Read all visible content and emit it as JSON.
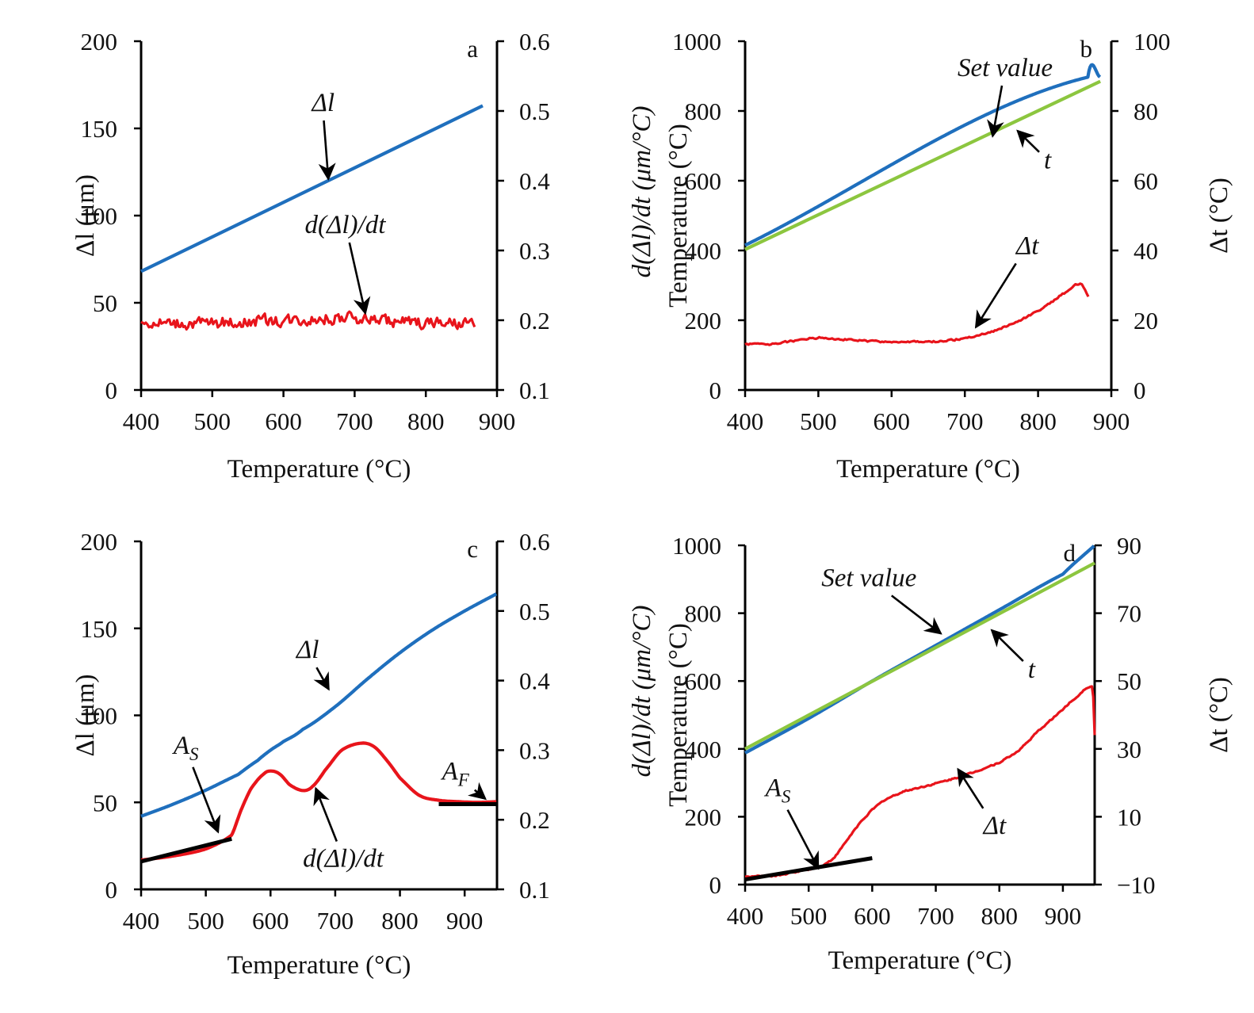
{
  "chart_data": [
    {
      "id": "a",
      "type": "line",
      "panel_label": "a",
      "xlabel": "Temperature (°C)",
      "ylabel": "Δl (μm)",
      "y2label": "",
      "xlim": [
        400,
        900
      ],
      "ylim": [
        0,
        200
      ],
      "y2lim": [
        0.1,
        0.6
      ],
      "xticks": [
        400,
        500,
        600,
        700,
        800,
        900
      ],
      "yticks": [
        0,
        50,
        100,
        150,
        200
      ],
      "y2ticks": [
        "0.1",
        "0.2",
        "0.3",
        "0.4",
        "0.5",
        "0.6"
      ],
      "series": [
        {
          "name": "Δl",
          "axis": "left",
          "color": "#1f6fbd",
          "x": [
            400,
            880
          ],
          "y": [
            68,
            163
          ]
        },
        {
          "name": "d(Δl)/dt",
          "axis": "right",
          "color": "#e8141b",
          "noisy": true,
          "noise_amp": 0.012,
          "x": [
            400,
            500,
            600,
            700,
            800,
            870
          ],
          "y": [
            0.196,
            0.196,
            0.2,
            0.202,
            0.196,
            0.192
          ]
        }
      ],
      "annotations": [
        {
          "text": "Δl",
          "x": 640,
          "y": 160,
          "axis": "left",
          "arrow_to": [
            663,
            121
          ]
        },
        {
          "text": "d(Δl)/dt",
          "x": 630,
          "y": 90,
          "axis": "left",
          "arrow_to": [
            715,
            44
          ]
        }
      ]
    },
    {
      "id": "b",
      "type": "line",
      "panel_label": "b",
      "xlabel": "Temperature (°C)",
      "ylabel": "Temperature  (°C)",
      "ylabel2": "d(Δl)/dt (μm/°C)",
      "y2label": "Δt (°C)",
      "xlim": [
        400,
        900
      ],
      "ylim": [
        0,
        1000
      ],
      "y2lim": [
        0,
        100
      ],
      "xticks": [
        400,
        500,
        600,
        700,
        800,
        900
      ],
      "yticks": [
        0,
        200,
        400,
        600,
        800,
        1000
      ],
      "y2ticks": [
        "0",
        "20",
        "40",
        "60",
        "80",
        "100"
      ],
      "series": [
        {
          "name": "Set value",
          "axis": "left",
          "color": "#1f6fbd",
          "x": [
            400,
            868,
            885
          ],
          "y": [
            415,
            897,
            897
          ]
        },
        {
          "name": "t",
          "axis": "left",
          "color": "#8cc63f",
          "x": [
            400,
            885
          ],
          "y": [
            403,
            885
          ]
        },
        {
          "name": "Δt",
          "axis": "right",
          "color": "#e8141b",
          "noisy": true,
          "noise_amp": 0.35,
          "x": [
            400,
            430,
            460,
            500,
            530,
            560,
            600,
            650,
            680,
            700,
            720,
            750,
            780,
            810,
            840,
            858,
            870
          ],
          "y": [
            13.2,
            13.1,
            13.9,
            15.0,
            14.6,
            14.1,
            13.8,
            13.8,
            14.2,
            14.9,
            15.8,
            17.7,
            20.5,
            24.0,
            28.3,
            30.3,
            26.2
          ]
        }
      ],
      "annotations": [
        {
          "text": "Set value",
          "x": 690,
          "y": 900,
          "axis": "left",
          "arrow_to": [
            738,
            728
          ]
        },
        {
          "text": "t",
          "x": 808,
          "y": 635,
          "axis": "left",
          "arrow_to": [
            772,
            743
          ]
        },
        {
          "text": "Δt",
          "x": 770,
          "y": 390,
          "axis": "left",
          "arrow_to": [
            715,
            180
          ]
        }
      ]
    },
    {
      "id": "c",
      "type": "line",
      "panel_label": "c",
      "xlabel": "Temperature (°C)",
      "ylabel": "Δl (μm)",
      "y2label": "",
      "xlim": [
        400,
        950
      ],
      "ylim": [
        0,
        200
      ],
      "y2lim": [
        0.1,
        0.6
      ],
      "xticks": [
        400,
        500,
        600,
        700,
        800,
        900
      ],
      "yticks": [
        0,
        50,
        100,
        150,
        200
      ],
      "y2ticks": [
        "0.1",
        "0.2",
        "0.3",
        "0.4",
        "0.5",
        "0.6"
      ],
      "series": [
        {
          "name": "Δl",
          "axis": "left",
          "color": "#1f6fbd",
          "x": [
            400,
            450,
            500,
            550,
            580,
            600,
            620,
            650,
            700,
            750,
            800,
            850,
            900,
            950
          ],
          "y": [
            42,
            49,
            57,
            66,
            74,
            80,
            85,
            92,
            105,
            121,
            136,
            149,
            160,
            170
          ]
        },
        {
          "name": "d(Δl)/dt",
          "axis": "right",
          "color": "#e8141b",
          "x": [
            400,
            450,
            500,
            540,
            555,
            570,
            590,
            602,
            615,
            630,
            650,
            665,
            685,
            710,
            740,
            760,
            780,
            800,
            830,
            860,
            890,
            920,
            950
          ],
          "y": [
            0.142,
            0.148,
            0.158,
            0.178,
            0.215,
            0.245,
            0.266,
            0.27,
            0.265,
            0.25,
            0.242,
            0.248,
            0.272,
            0.3,
            0.31,
            0.305,
            0.285,
            0.26,
            0.235,
            0.228,
            0.226,
            0.225,
            0.226
          ]
        }
      ],
      "tangents": [
        {
          "x": [
            400,
            540
          ],
          "y": [
            16,
            29
          ],
          "axis": "left"
        },
        {
          "x": [
            860,
            950
          ],
          "y": [
            49,
            49
          ],
          "axis": "left"
        }
      ],
      "annotations": [
        {
          "text": "AS",
          "main": "A",
          "sub": "S",
          "x": 450,
          "y": 78,
          "axis": "left",
          "arrow_to": [
            519,
            33
          ]
        },
        {
          "text": "AF",
          "main": "A",
          "sub": "F",
          "x": 865,
          "y": 63,
          "axis": "left",
          "arrow_to": [
            932,
            52
          ]
        },
        {
          "text": "Δl",
          "x": 640,
          "y": 133,
          "axis": "left",
          "arrow_to": [
            690,
            115
          ]
        },
        {
          "text": "d(Δl)/dt",
          "x": 650,
          "y": 13,
          "axis": "left",
          "arrow_to": [
            670,
            58
          ]
        }
      ]
    },
    {
      "id": "d",
      "type": "line",
      "panel_label": "d",
      "xlabel": "Temperature (°C)",
      "ylabel": "Temperature (°C)",
      "ylabel2": "d(Δl)/dt (μm/°C)",
      "y2label": "Δt (°C)",
      "xlim": [
        400,
        950
      ],
      "ylim": [
        0,
        1000
      ],
      "y2lim": [
        -10,
        90
      ],
      "xticks": [
        400,
        500,
        600,
        700,
        800,
        900
      ],
      "yticks": [
        0,
        200,
        400,
        600,
        800,
        1000
      ],
      "y2ticks": [
        "−10",
        "10",
        "30",
        "50",
        "70",
        "90"
      ],
      "y2tickvals": [
        -10,
        10,
        30,
        50,
        70,
        90
      ],
      "series": [
        {
          "name": "Set value",
          "axis": "left",
          "color": "#1f6fbd",
          "x": [
            400,
            500,
            600,
            700,
            800,
            900,
            950
          ],
          "y": [
            388,
            490,
            600,
            705,
            810,
            915,
            1000
          ]
        },
        {
          "name": "t",
          "axis": "left",
          "color": "#8cc63f",
          "x": [
            400,
            950
          ],
          "y": [
            400,
            948
          ]
        },
        {
          "name": "Δt",
          "axis": "right",
          "color": "#e8141b",
          "noisy": true,
          "noise_amp": 0.3,
          "x": [
            400,
            450,
            500,
            520,
            540,
            560,
            580,
            600,
            620,
            650,
            700,
            750,
            800,
            830,
            860,
            890,
            920,
            945,
            948,
            950
          ],
          "y": [
            -7.6,
            -7.3,
            -5.5,
            -4.5,
            -2.0,
            3.0,
            8.0,
            12.0,
            15.0,
            17.5,
            19.8,
            22.5,
            26.0,
            29.5,
            35.0,
            40.0,
            45.0,
            48.5,
            45.0,
            34.0
          ]
        }
      ],
      "tangents": [
        {
          "x": [
            400,
            600
          ],
          "y": [
            15,
            78
          ],
          "axis": "left"
        }
      ],
      "annotations": [
        {
          "text": "Set value",
          "x": 520,
          "y": 880,
          "axis": "left",
          "arrow_to": [
            708,
            740
          ]
        },
        {
          "text": "t",
          "x": 845,
          "y": 610,
          "axis": "left",
          "arrow_to": [
            788,
            750
          ]
        },
        {
          "text": "AS",
          "main": "A",
          "sub": "S",
          "x": 432,
          "y": 260,
          "axis": "left",
          "arrow_to": [
            515,
            48
          ]
        },
        {
          "text": "Δt",
          "x": 775,
          "y": 150,
          "axis": "left",
          "arrow_to": [
            735,
            340
          ]
        }
      ]
    }
  ],
  "theme": {
    "axis_color": "#000000",
    "blue": "#1f6fbd",
    "green": "#8cc63f",
    "red": "#e8141b",
    "tangent": "#000000"
  }
}
